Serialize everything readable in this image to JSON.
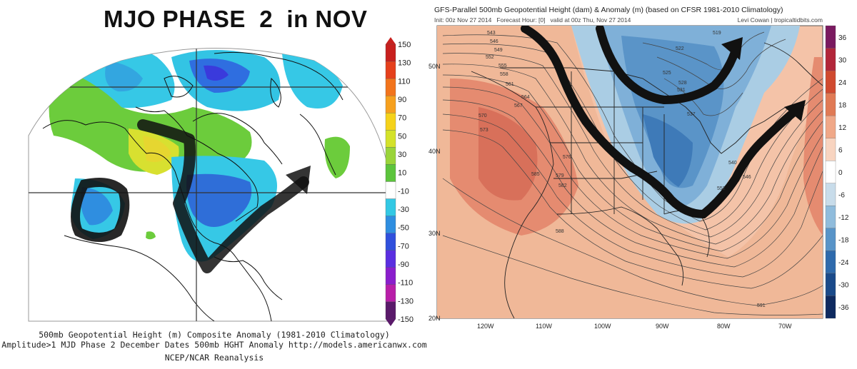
{
  "left_panel": {
    "title": "MJO PHASE  2  in NOV",
    "colorbar_ticks": [
      "150",
      "130",
      "110",
      "90",
      "70",
      "50",
      "30",
      "10",
      "-10",
      "-30",
      "-50",
      "-70",
      "-90",
      "-110",
      "-130",
      "-150"
    ],
    "colorbar_colors": [
      "#c8201e",
      "#e5401c",
      "#f2741c",
      "#f6a01e",
      "#f5d21a",
      "#d4e22a",
      "#9ad43a",
      "#5cc43c",
      "#ffffff",
      "#33c8e4",
      "#2f8ee0",
      "#3050dc",
      "#5a2ee0",
      "#8a1ecc",
      "#b81ea8",
      "#5a1a6a"
    ],
    "caption_lines": [
      "500mb Geopotential Height (m) Composite Anomaly (1981-2010 Climatology)",
      "Amplitude>1 MJD Phase 2 December Dates 500mb HGHT Anomaly http://models.americanwx.com",
      "NCEP/NCAR Reanalysis"
    ]
  },
  "right_panel": {
    "title": "GFS-Parallel 500mb Geopotential Height (dam) & Anomaly (m) (based on CFSR 1981-2010 Climatology)",
    "subtitle": "Init: 00z Nov 27 2014   Forecast Hour: [0]   valid at 00z Thu, Nov 27 2014",
    "credit": "Levi Cowan | tropicaltidbits.com",
    "lat_labels": [
      "50N",
      "40N",
      "30N",
      "20N"
    ],
    "lon_labels": [
      "120W",
      "110W",
      "100W",
      "90W",
      "80W",
      "70W"
    ],
    "colorbar_ticks": [
      "36",
      "30",
      "24",
      "18",
      "12",
      "6",
      "0",
      "-6",
      "-12",
      "-18",
      "-24",
      "-30",
      "-36"
    ],
    "colorbar_colors": [
      "#7a1a60",
      "#b2263a",
      "#d04a30",
      "#e07a55",
      "#f0a888",
      "#f8d4c0",
      "#ffffff",
      "#c8dcea",
      "#90bcdc",
      "#5894c8",
      "#2e6aac",
      "#1a4a8a",
      "#0e2a60"
    ],
    "contour_labels": [
      "543",
      "546",
      "549",
      "552",
      "555",
      "558",
      "561",
      "564",
      "567",
      "570",
      "573",
      "576",
      "579",
      "582",
      "585",
      "588",
      "591",
      "519",
      "522",
      "525",
      "528",
      "531",
      "537",
      "540",
      "546",
      "552"
    ]
  },
  "colors": {
    "positive_anomaly": "#e8937a",
    "negative_anomaly": "#3e7fc0",
    "drawn_arrow": "#111111"
  }
}
